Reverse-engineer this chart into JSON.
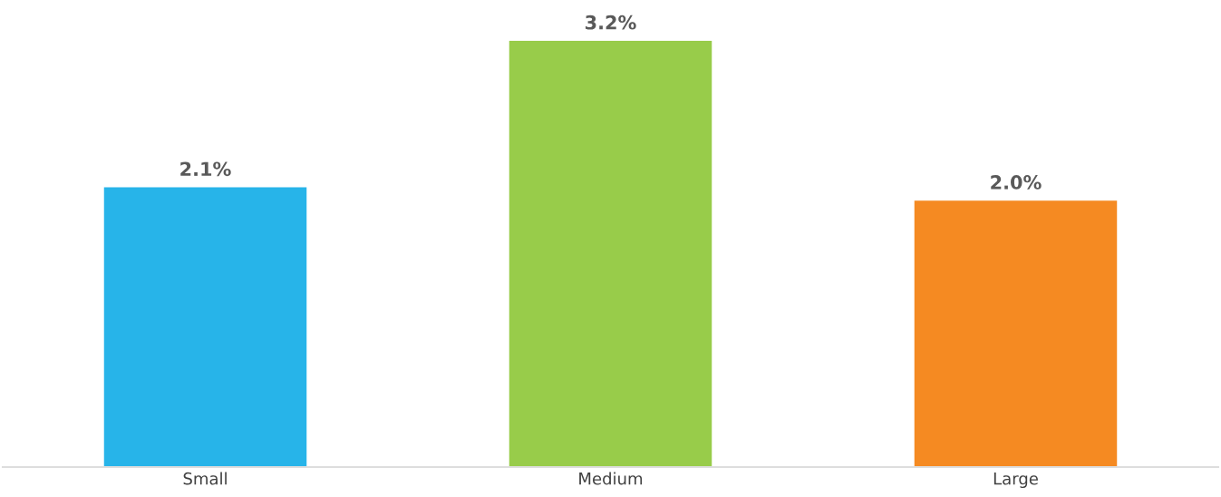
{
  "chart_data": {
    "type": "bar",
    "categories": [
      "Small",
      "Medium",
      "Large"
    ],
    "values": [
      2.1,
      3.2,
      2.0
    ],
    "colors": [
      "#27b4e9",
      "#98cc4a",
      "#f58a22"
    ],
    "value_labels": [
      "2.1%",
      "3.2%",
      "2.0%"
    ],
    "grid": false,
    "legend": false
  }
}
